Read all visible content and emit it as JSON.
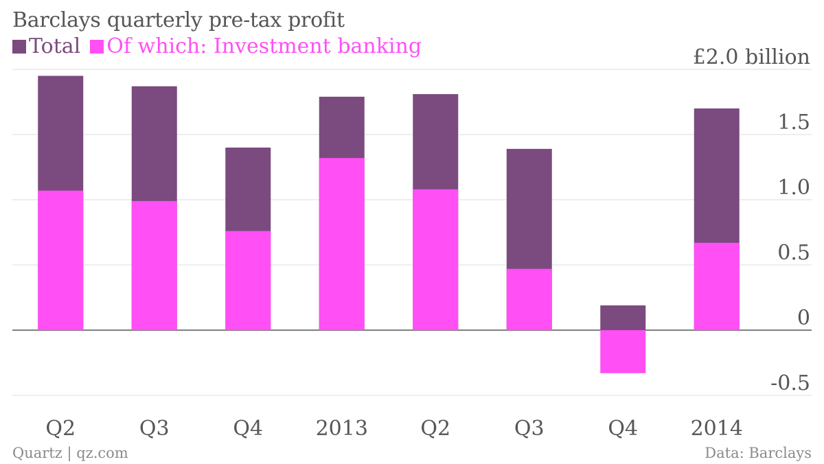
{
  "chart_data": {
    "type": "bar",
    "stacked_overlay": true,
    "title": "Barclays quarterly pre-tax profit",
    "unit_label": "£2.0 billion",
    "categories": [
      "Q2",
      "Q3",
      "Q4",
      "2013",
      "Q2",
      "Q3",
      "Q4",
      "2014"
    ],
    "series": [
      {
        "name": "Total",
        "color": "#7b4a7e",
        "values": [
          1.95,
          1.87,
          1.4,
          1.79,
          1.81,
          1.39,
          0.19,
          1.7
        ]
      },
      {
        "name": "Of which: Investment banking",
        "color": "#ff4ff5",
        "values": [
          1.07,
          0.99,
          0.76,
          1.32,
          1.08,
          0.47,
          -0.33,
          0.67
        ]
      }
    ],
    "ylim": [
      -0.5,
      2.0
    ],
    "yticks": [
      -0.5,
      0,
      0.5,
      1.0,
      1.5,
      2.0
    ],
    "ytick_labels": [
      "-0.5",
      "0",
      "0.5",
      "1.0",
      "1.5",
      "£2.0 billion"
    ],
    "grid": true,
    "legend_position": "top-left"
  },
  "footer": {
    "source_left": "Quartz | qz.com",
    "source_right": "Data: Barclays"
  }
}
